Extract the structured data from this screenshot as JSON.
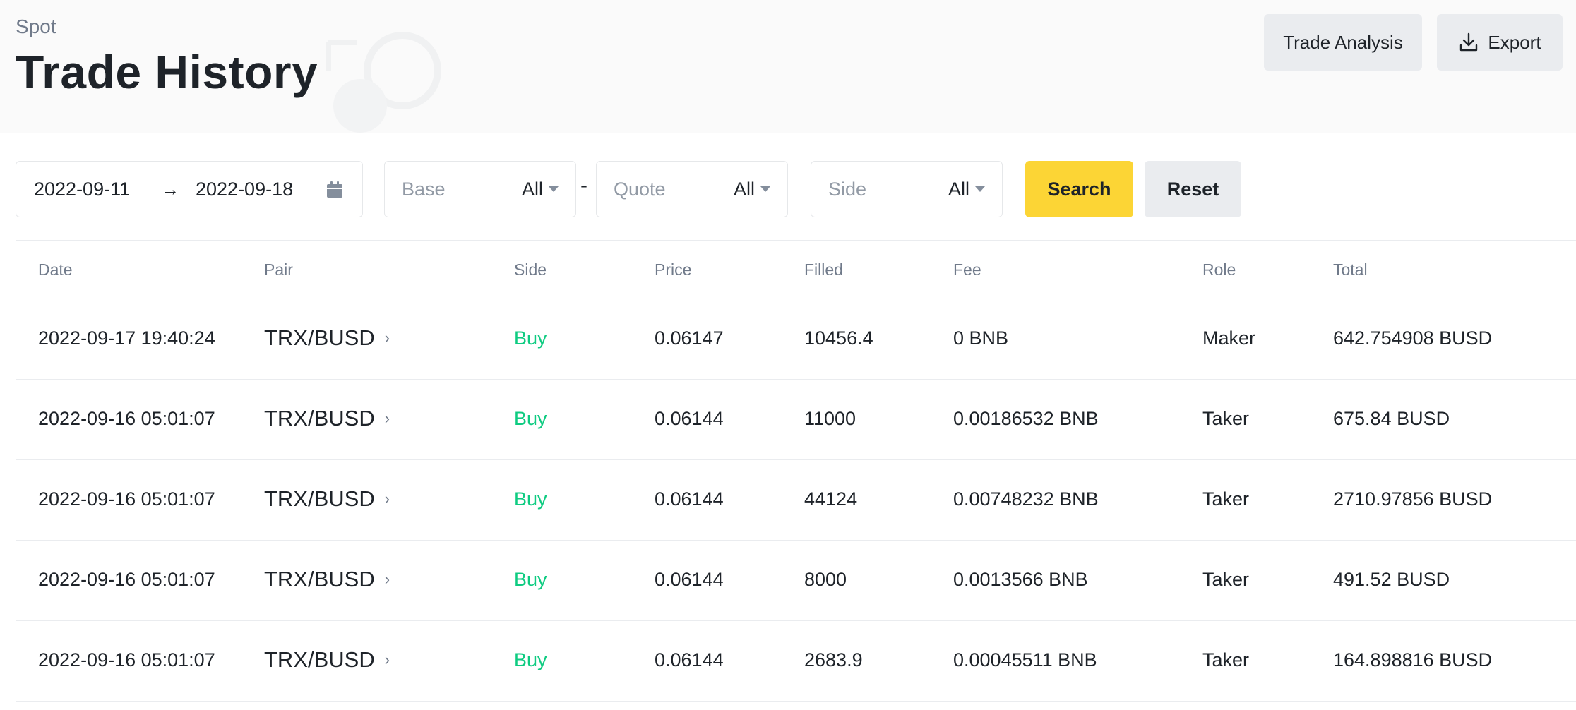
{
  "header": {
    "breadcrumb": "Spot",
    "title": "Trade History",
    "trade_analysis_label": "Trade Analysis",
    "export_label": "Export"
  },
  "filters": {
    "start_date": "2022-09-11",
    "end_date": "2022-09-18",
    "base_placeholder": "Base",
    "base_value": "All",
    "quote_placeholder": "Quote",
    "quote_value": "All",
    "side_placeholder": "Side",
    "side_value": "All",
    "separator": "-",
    "search_label": "Search",
    "reset_label": "Reset"
  },
  "table": {
    "columns": [
      "Date",
      "Pair",
      "Side",
      "Price",
      "Filled",
      "Fee",
      "Role",
      "Total"
    ],
    "rows": [
      {
        "date": "2022-09-17 19:40:24",
        "pair": "TRX/BUSD",
        "side": "Buy",
        "price": "0.06147",
        "filled": "10456.4",
        "fee": "0 BNB",
        "role": "Maker",
        "total": "642.754908 BUSD"
      },
      {
        "date": "2022-09-16 05:01:07",
        "pair": "TRX/BUSD",
        "side": "Buy",
        "price": "0.06144",
        "filled": "11000",
        "fee": "0.00186532 BNB",
        "role": "Taker",
        "total": "675.84 BUSD"
      },
      {
        "date": "2022-09-16 05:01:07",
        "pair": "TRX/BUSD",
        "side": "Buy",
        "price": "0.06144",
        "filled": "44124",
        "fee": "0.00748232 BNB",
        "role": "Taker",
        "total": "2710.97856 BUSD"
      },
      {
        "date": "2022-09-16 05:01:07",
        "pair": "TRX/BUSD",
        "side": "Buy",
        "price": "0.06144",
        "filled": "8000",
        "fee": "0.0013566 BNB",
        "role": "Taker",
        "total": "491.52 BUSD"
      },
      {
        "date": "2022-09-16 05:01:07",
        "pair": "TRX/BUSD",
        "side": "Buy",
        "price": "0.06144",
        "filled": "2683.9",
        "fee": "0.00045511 BNB",
        "role": "Taker",
        "total": "164.898816 BUSD"
      }
    ]
  },
  "colors": {
    "accent_yellow": "#fcd535",
    "buy_green": "#0ecb81",
    "muted_text": "#707a8a",
    "button_gray": "#eaecef"
  },
  "icons": {
    "export": "download-icon",
    "calendar": "calendar-icon",
    "arrow": "arrow-right-icon",
    "pair_link": "chevron-right-icon",
    "dropdown": "caret-down-icon"
  }
}
